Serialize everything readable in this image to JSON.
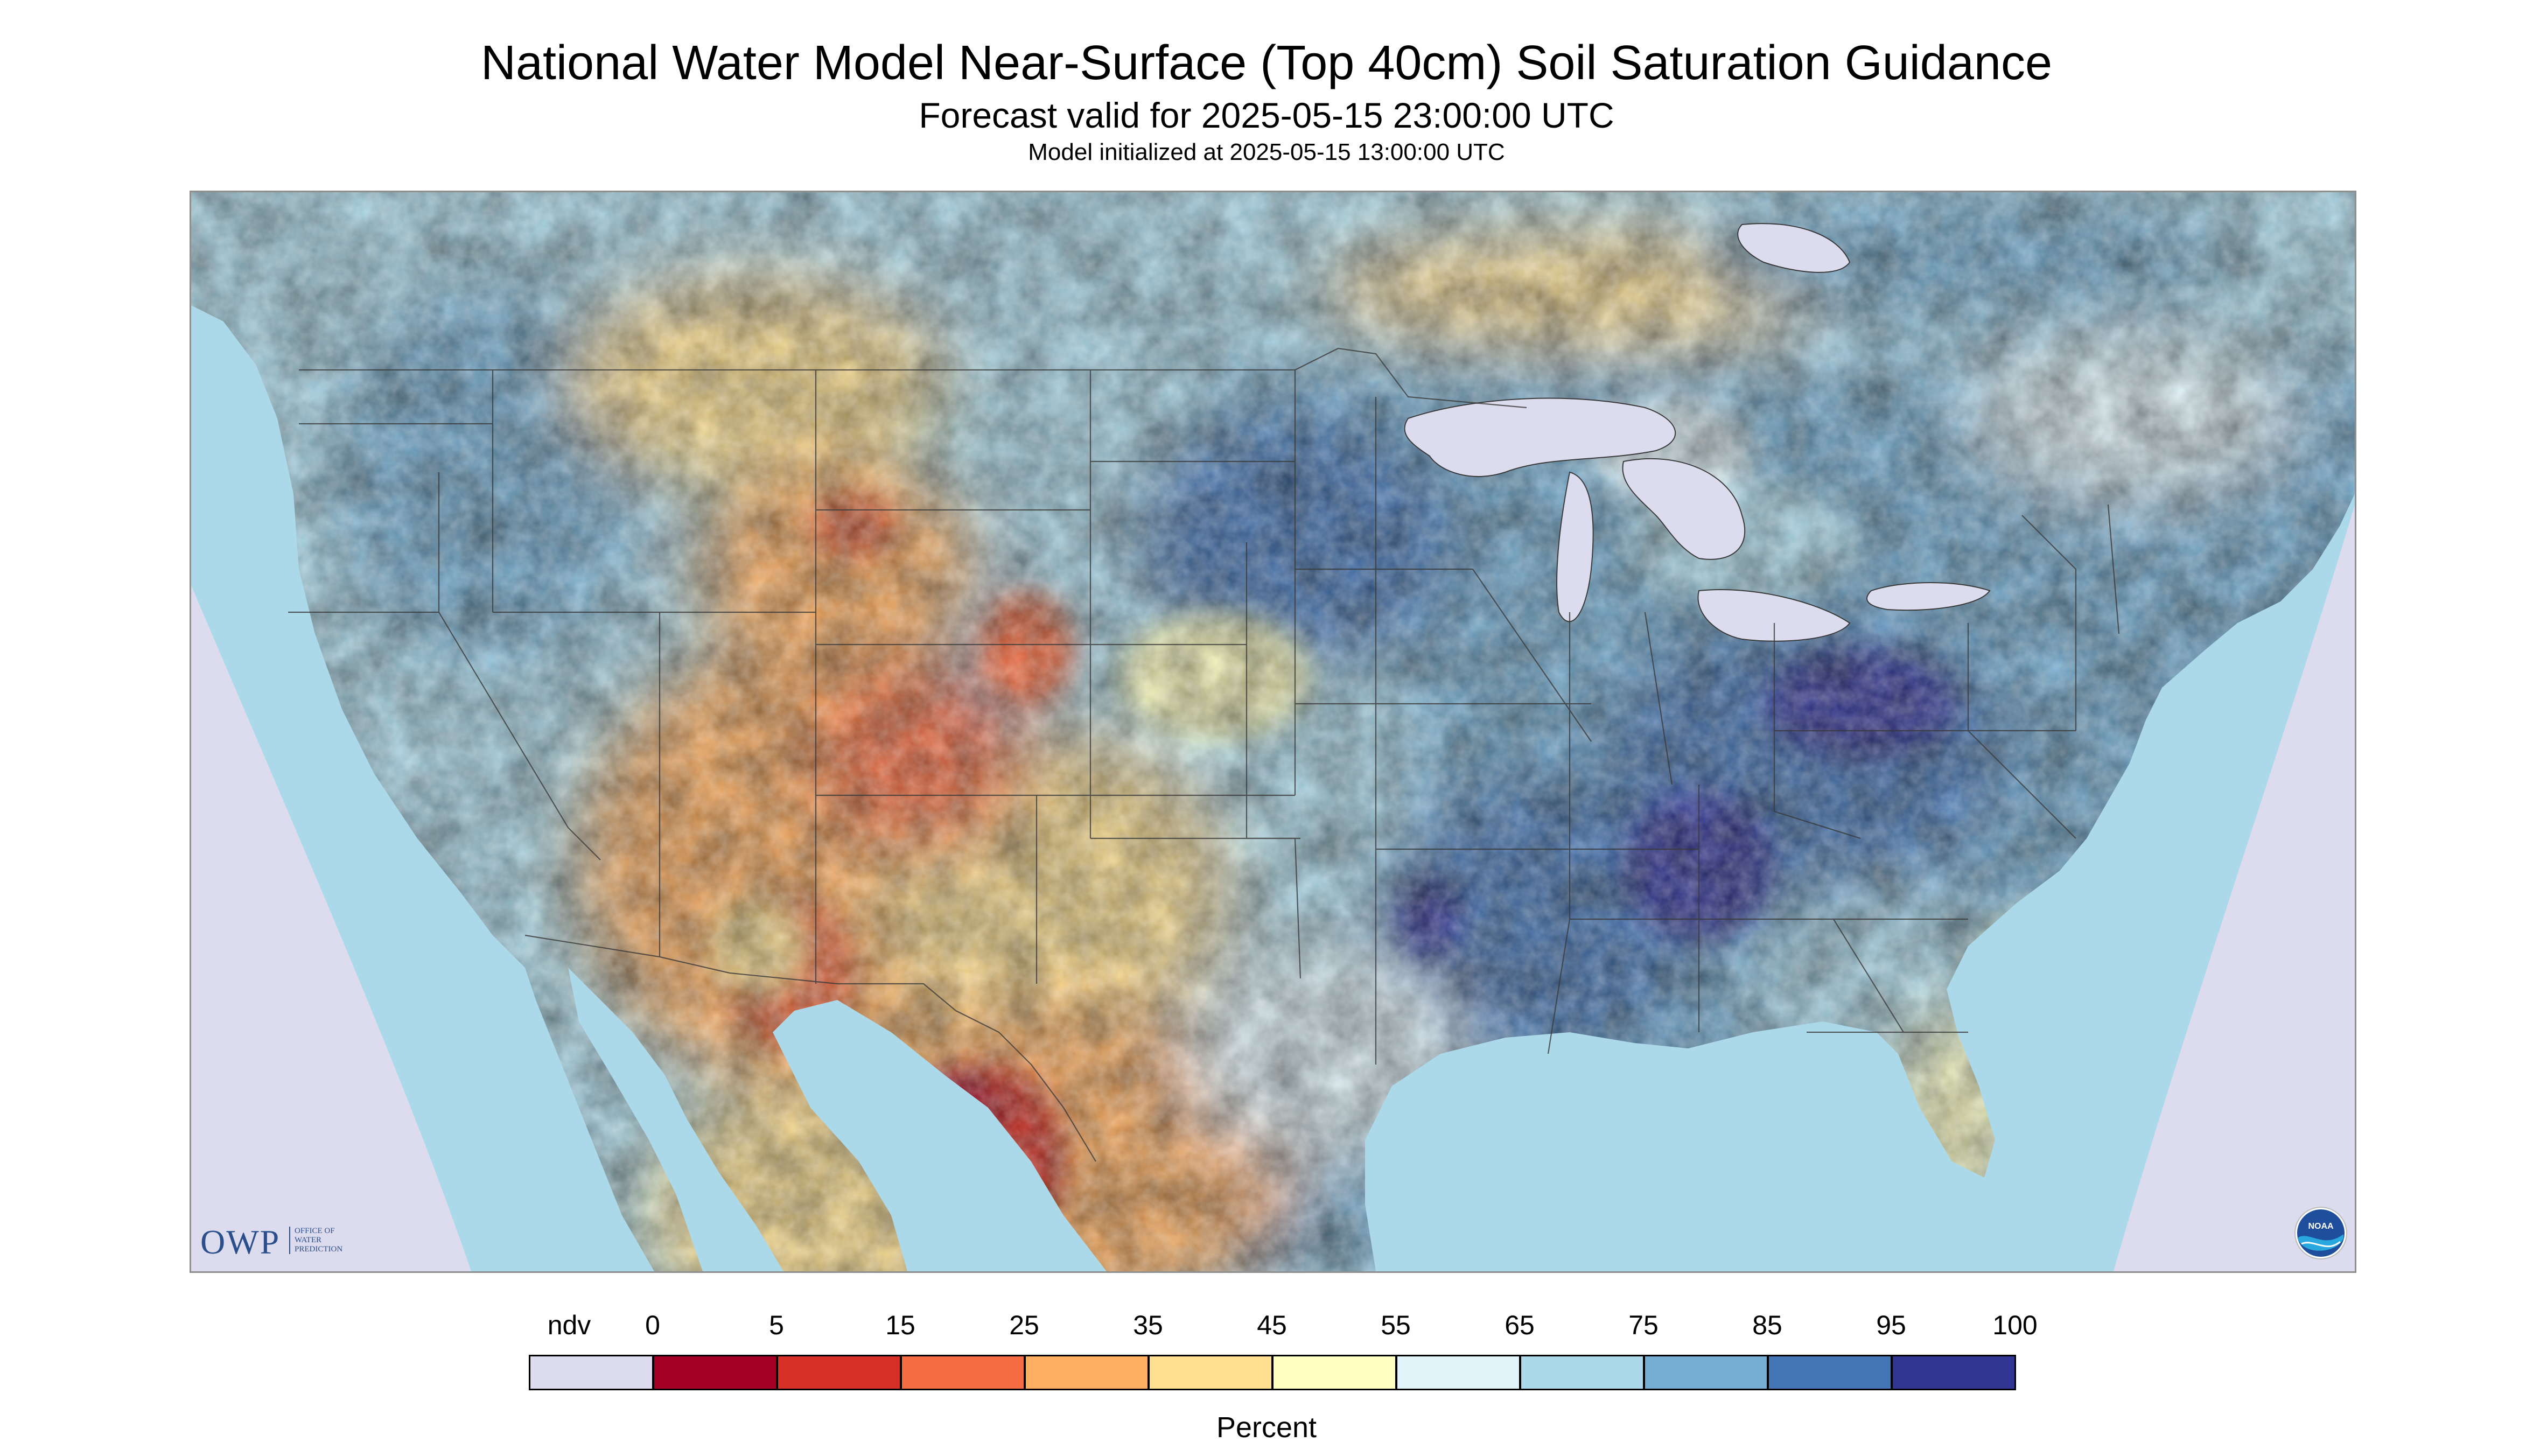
{
  "header": {
    "title": "National Water Model Near-Surface (Top 40cm) Soil Saturation Guidance",
    "subtitle": "Forecast valid for 2025-05-15 23:00:00 UTC",
    "model_init": "Model initialized at 2025-05-15 13:00:00 UTC"
  },
  "map": {
    "region": "CONUS",
    "colors": {
      "no_data": "#dcdcee",
      "water": "#dcdcee",
      "border": "#3a3a3a"
    }
  },
  "logos": {
    "owp": {
      "text": "OWP",
      "sub": [
        "OFFICE OF",
        "WATER",
        "PREDICTION"
      ]
    },
    "noaa": {
      "icon": "noaa-logo-icon",
      "text": "NOAA"
    }
  },
  "legend": {
    "ndv_label": "ndv",
    "ndv_color": "#dcdcee",
    "labels": [
      "0",
      "5",
      "15",
      "25",
      "35",
      "45",
      "55",
      "65",
      "75",
      "85",
      "95",
      "100"
    ],
    "colors": [
      "#a50026",
      "#d73027",
      "#f46d43",
      "#fdae61",
      "#fee090",
      "#ffffbf",
      "#e0f3f8",
      "#abd9e9",
      "#74add1",
      "#4575b4",
      "#313695"
    ],
    "units": "Percent"
  }
}
